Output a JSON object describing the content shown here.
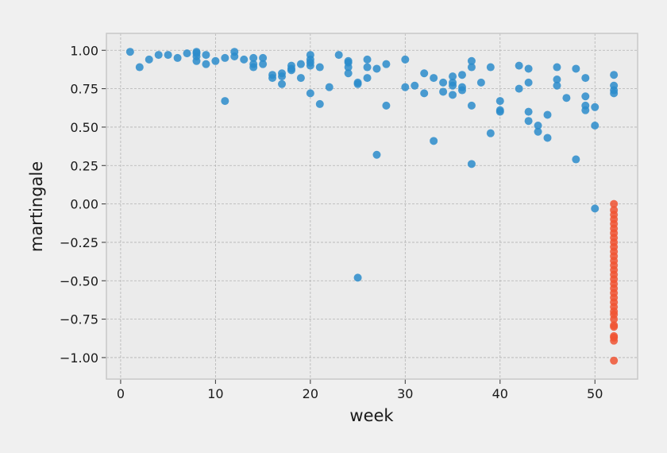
{
  "chart_data": {
    "type": "scatter",
    "title": "",
    "xlabel": "week",
    "ylabel": "martingale",
    "xlim": [
      -1.5,
      54.5
    ],
    "ylim": [
      -1.14,
      1.11
    ],
    "xticks": [
      0,
      10,
      20,
      30,
      40,
      50
    ],
    "yticks": [
      1.0,
      0.75,
      0.5,
      0.25,
      0.0,
      -0.25,
      -0.5,
      -0.75,
      -1.0
    ],
    "xtick_labels": [
      "0",
      "10",
      "20",
      "30",
      "40",
      "50"
    ],
    "ytick_labels": [
      "1.00",
      "0.75",
      "0.50",
      "0.25",
      "0.00",
      "−0.25",
      "−0.50",
      "−0.75",
      "−1.00"
    ],
    "grid": true,
    "background_color": "#ebebeb",
    "series": [
      {
        "color": "#2b8ccb",
        "points": [
          [
            1,
            0.99
          ],
          [
            2,
            0.89
          ],
          [
            3,
            0.94
          ],
          [
            4,
            0.97
          ],
          [
            5,
            0.97
          ],
          [
            6,
            0.95
          ],
          [
            7,
            0.98
          ],
          [
            8,
            0.99
          ],
          [
            8,
            0.96
          ],
          [
            8,
            0.93
          ],
          [
            8,
            0.98
          ],
          [
            9,
            0.91
          ],
          [
            9,
            0.97
          ],
          [
            10,
            0.93
          ],
          [
            11,
            0.95
          ],
          [
            11,
            0.67
          ],
          [
            12,
            0.99
          ],
          [
            12,
            0.96
          ],
          [
            13,
            0.94
          ],
          [
            14,
            0.95
          ],
          [
            14,
            0.91
          ],
          [
            14,
            0.89
          ],
          [
            15,
            0.95
          ],
          [
            15,
            0.91
          ],
          [
            16,
            0.84
          ],
          [
            16,
            0.82
          ],
          [
            17,
            0.85
          ],
          [
            17,
            0.83
          ],
          [
            17,
            0.78
          ],
          [
            18,
            0.9
          ],
          [
            18,
            0.88
          ],
          [
            18,
            0.87
          ],
          [
            19,
            0.91
          ],
          [
            19,
            0.82
          ],
          [
            20,
            0.97
          ],
          [
            20,
            0.94
          ],
          [
            20,
            0.92
          ],
          [
            20,
            0.9
          ],
          [
            20,
            0.72
          ],
          [
            21,
            0.89
          ],
          [
            21,
            0.65
          ],
          [
            22,
            0.76
          ],
          [
            23,
            0.97
          ],
          [
            24,
            0.93
          ],
          [
            24,
            0.92
          ],
          [
            24,
            0.89
          ],
          [
            24,
            0.85
          ],
          [
            25,
            0.79
          ],
          [
            25,
            0.78
          ],
          [
            25,
            -0.48
          ],
          [
            26,
            0.94
          ],
          [
            26,
            0.89
          ],
          [
            26,
            0.82
          ],
          [
            27,
            0.88
          ],
          [
            27,
            0.32
          ],
          [
            28,
            0.91
          ],
          [
            28,
            0.64
          ],
          [
            30,
            0.94
          ],
          [
            30,
            0.76
          ],
          [
            31,
            0.77
          ],
          [
            32,
            0.85
          ],
          [
            32,
            0.72
          ],
          [
            33,
            0.82
          ],
          [
            33,
            0.41
          ],
          [
            34,
            0.79
          ],
          [
            34,
            0.73
          ],
          [
            35,
            0.83
          ],
          [
            35,
            0.79
          ],
          [
            35,
            0.77
          ],
          [
            35,
            0.71
          ],
          [
            36,
            0.84
          ],
          [
            36,
            0.76
          ],
          [
            36,
            0.74
          ],
          [
            37,
            0.93
          ],
          [
            37,
            0.89
          ],
          [
            37,
            0.64
          ],
          [
            37,
            0.26
          ],
          [
            38,
            0.79
          ],
          [
            39,
            0.89
          ],
          [
            39,
            0.46
          ],
          [
            40,
            0.67
          ],
          [
            40,
            0.61
          ],
          [
            40,
            0.6
          ],
          [
            42,
            0.9
          ],
          [
            42,
            0.75
          ],
          [
            43,
            0.88
          ],
          [
            43,
            0.79
          ],
          [
            43,
            0.6
          ],
          [
            43,
            0.54
          ],
          [
            44,
            0.51
          ],
          [
            44,
            0.47
          ],
          [
            45,
            0.58
          ],
          [
            45,
            0.43
          ],
          [
            46,
            0.89
          ],
          [
            46,
            0.81
          ],
          [
            46,
            0.77
          ],
          [
            47,
            0.69
          ],
          [
            48,
            0.88
          ],
          [
            48,
            0.29
          ],
          [
            49,
            0.82
          ],
          [
            49,
            0.7
          ],
          [
            49,
            0.64
          ],
          [
            49,
            0.61
          ],
          [
            50,
            0.63
          ],
          [
            50,
            0.51
          ],
          [
            50,
            -0.03
          ],
          [
            52,
            0.84
          ],
          [
            52,
            0.77
          ],
          [
            52,
            0.74
          ],
          [
            52,
            0.72
          ]
        ]
      },
      {
        "color": "#f05433",
        "points": [
          [
            52,
            0.0
          ],
          [
            52,
            -0.04
          ],
          [
            52,
            -0.07
          ],
          [
            52,
            -0.1
          ],
          [
            52,
            -0.13
          ],
          [
            52,
            -0.16
          ],
          [
            52,
            -0.19
          ],
          [
            52,
            -0.22
          ],
          [
            52,
            -0.25
          ],
          [
            52,
            -0.28
          ],
          [
            52,
            -0.31
          ],
          [
            52,
            -0.34
          ],
          [
            52,
            -0.37
          ],
          [
            52,
            -0.4
          ],
          [
            52,
            -0.43
          ],
          [
            52,
            -0.46
          ],
          [
            52,
            -0.49
          ],
          [
            52,
            -0.52
          ],
          [
            52,
            -0.55
          ],
          [
            52,
            -0.58
          ],
          [
            52,
            -0.61
          ],
          [
            52,
            -0.64
          ],
          [
            52,
            -0.67
          ],
          [
            52,
            -0.7
          ],
          [
            52,
            -0.72
          ],
          [
            52,
            -0.75
          ],
          [
            52,
            -0.79
          ],
          [
            52,
            -0.8
          ],
          [
            52,
            -0.86
          ],
          [
            52,
            -0.87
          ],
          [
            52,
            -0.89
          ],
          [
            52,
            -1.02
          ]
        ]
      }
    ]
  }
}
